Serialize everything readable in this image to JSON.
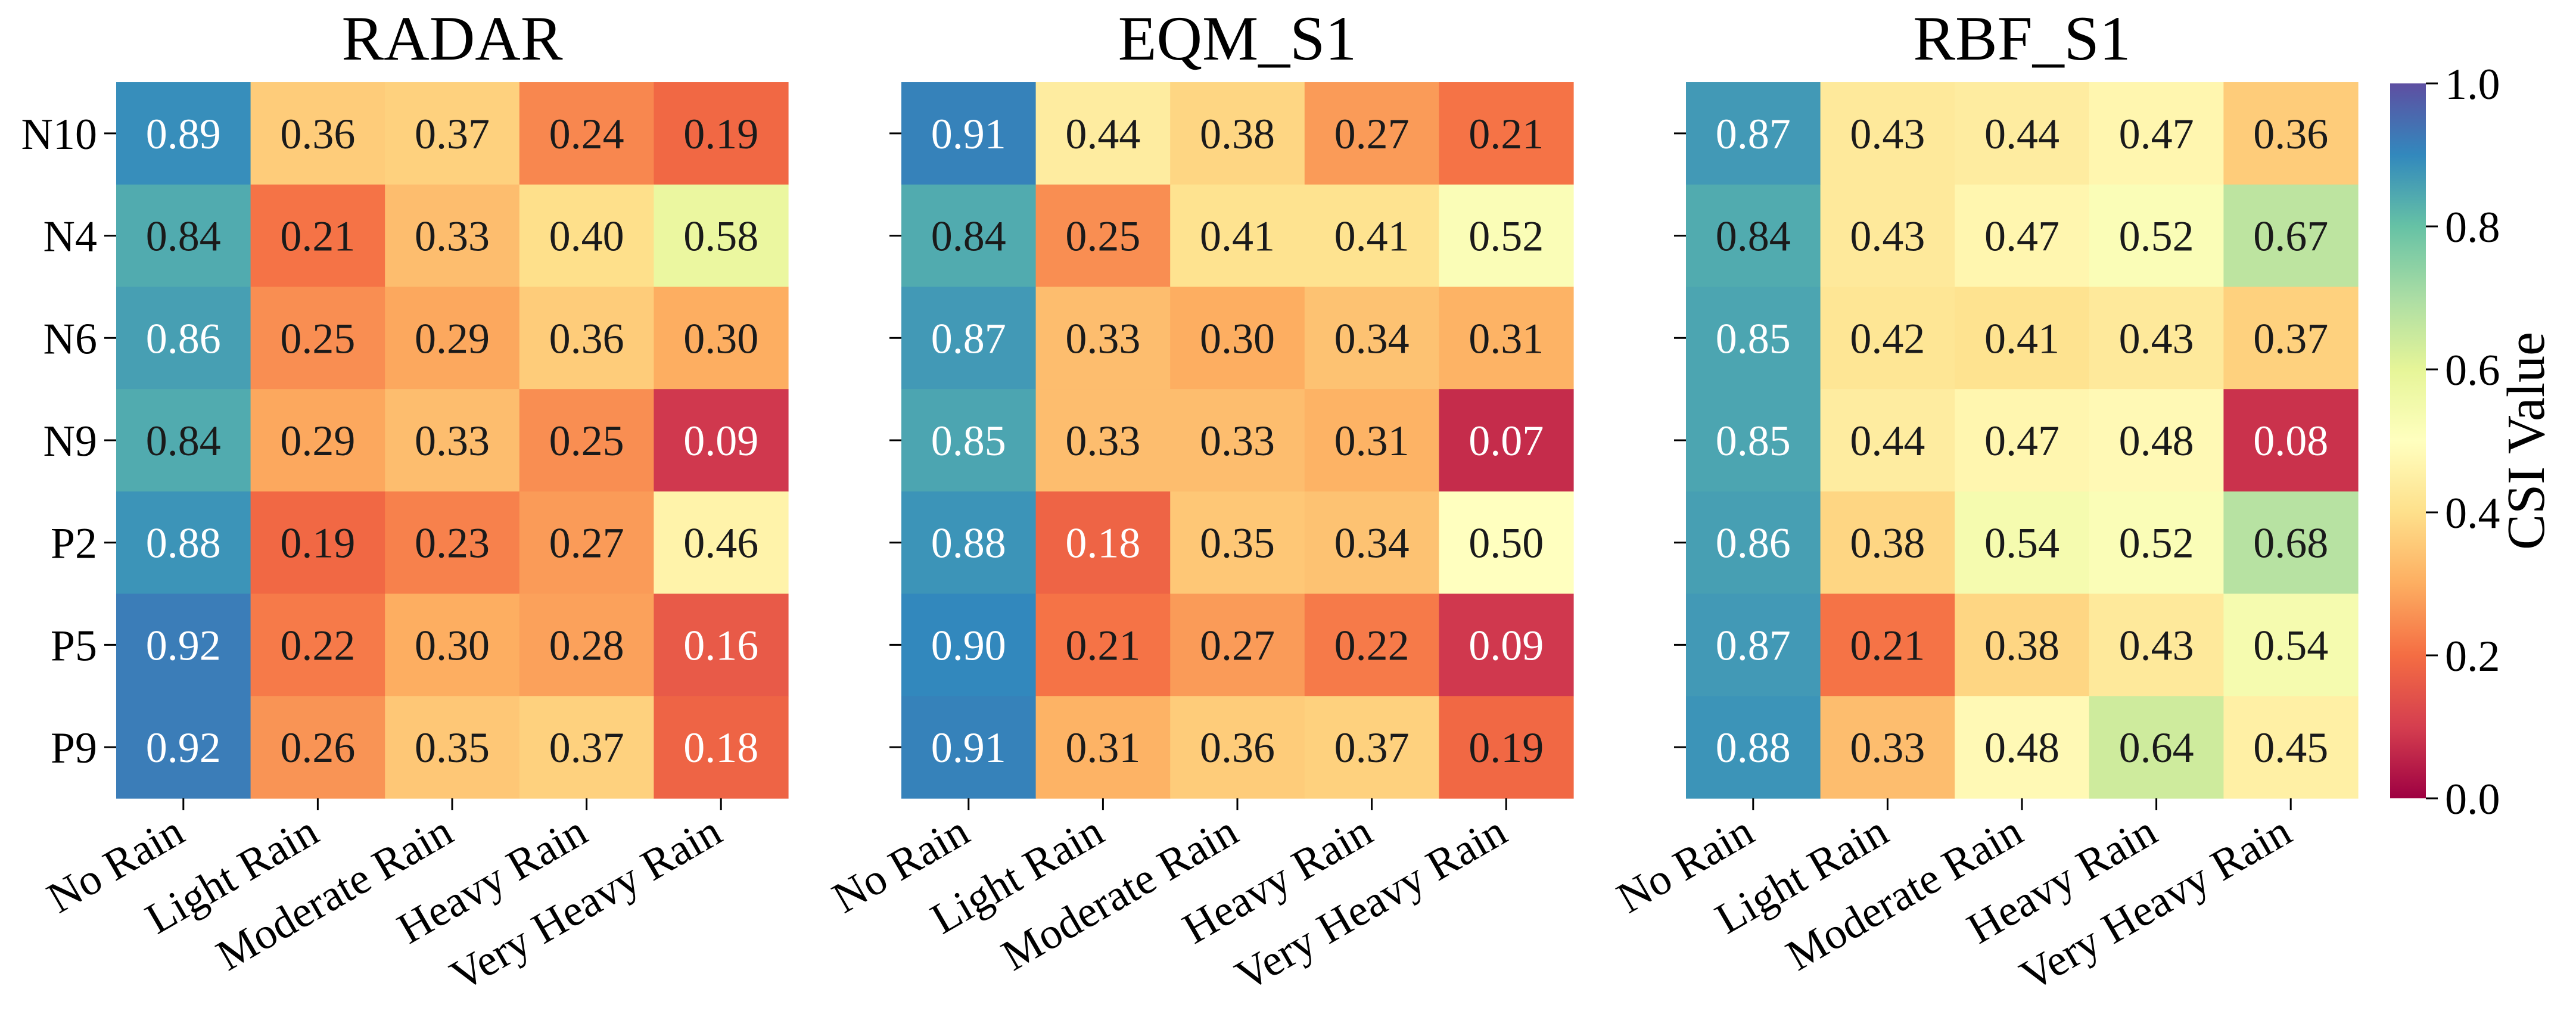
{
  "chart_data": {
    "type": "heatmap",
    "rows": [
      "N10",
      "N4",
      "N6",
      "N9",
      "P2",
      "P5",
      "P9"
    ],
    "columns": [
      "No Rain",
      "Light Rain",
      "Moderate Rain",
      "Heavy Rain",
      "Very Heavy Rain"
    ],
    "panels": [
      {
        "title": "RADAR",
        "values": [
          [
            0.89,
            0.36,
            0.37,
            0.24,
            0.19
          ],
          [
            0.84,
            0.21,
            0.33,
            0.4,
            0.58
          ],
          [
            0.86,
            0.25,
            0.29,
            0.36,
            0.3
          ],
          [
            0.84,
            0.29,
            0.33,
            0.25,
            0.09
          ],
          [
            0.88,
            0.19,
            0.23,
            0.27,
            0.46
          ],
          [
            0.92,
            0.22,
            0.3,
            0.28,
            0.16
          ],
          [
            0.92,
            0.26,
            0.35,
            0.37,
            0.18
          ]
        ]
      },
      {
        "title": "EQM_S1",
        "values": [
          [
            0.91,
            0.44,
            0.38,
            0.27,
            0.21
          ],
          [
            0.84,
            0.25,
            0.41,
            0.41,
            0.52
          ],
          [
            0.87,
            0.33,
            0.3,
            0.34,
            0.31
          ],
          [
            0.85,
            0.33,
            0.33,
            0.31,
            0.07
          ],
          [
            0.88,
            0.18,
            0.35,
            0.34,
            0.5
          ],
          [
            0.9,
            0.21,
            0.27,
            0.22,
            0.09
          ],
          [
            0.91,
            0.31,
            0.36,
            0.37,
            0.19
          ]
        ]
      },
      {
        "title": "RBF_S1",
        "values": [
          [
            0.87,
            0.43,
            0.44,
            0.47,
            0.36
          ],
          [
            0.84,
            0.43,
            0.47,
            0.52,
            0.67
          ],
          [
            0.85,
            0.42,
            0.41,
            0.43,
            0.37
          ],
          [
            0.85,
            0.44,
            0.47,
            0.48,
            0.08
          ],
          [
            0.86,
            0.38,
            0.54,
            0.52,
            0.68
          ],
          [
            0.87,
            0.21,
            0.38,
            0.43,
            0.54
          ],
          [
            0.88,
            0.33,
            0.48,
            0.64,
            0.45
          ]
        ]
      }
    ],
    "colorbar": {
      "label": "CSI Value",
      "range": [
        0.0,
        1.0
      ],
      "ticks": [
        "0.0",
        "0.2",
        "0.4",
        "0.6",
        "0.8",
        "1.0"
      ],
      "colormap": "Spectral"
    }
  }
}
